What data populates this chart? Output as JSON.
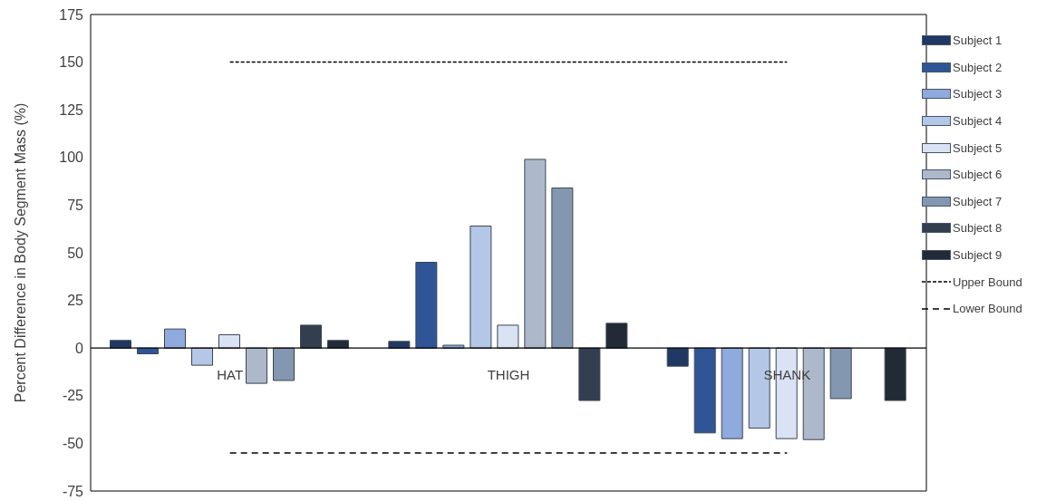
{
  "chart_data": {
    "type": "bar",
    "ylabel": "Percent Difference in Body Segment Mass (%)",
    "categories": [
      "HAT",
      "THIGH",
      "SHANK"
    ],
    "series": [
      {
        "name": "Subject 1",
        "color": "#203864",
        "values": [
          4,
          3.5,
          -9.5
        ]
      },
      {
        "name": "Subject 2",
        "color": "#2f5597",
        "values": [
          -3,
          45,
          -44.5
        ]
      },
      {
        "name": "Subject 3",
        "color": "#8faadc",
        "values": [
          10,
          1.5,
          -47.5
        ]
      },
      {
        "name": "Subject 4",
        "color": "#b4c7e7",
        "values": [
          -9,
          64,
          -42
        ]
      },
      {
        "name": "Subject 5",
        "color": "#dae3f3",
        "values": [
          7,
          12,
          -47.5
        ]
      },
      {
        "name": "Subject 6",
        "color": "#adb9ca",
        "values": [
          -18.5,
          99,
          -48
        ]
      },
      {
        "name": "Subject 7",
        "color": "#8497b0",
        "values": [
          -17,
          84,
          -26.5
        ]
      },
      {
        "name": "Subject 8",
        "color": "#333f50",
        "values": [
          12,
          -27.5,
          0
        ]
      },
      {
        "name": "Subject 9",
        "color": "#222a35",
        "values": [
          4,
          13,
          -27.5
        ]
      }
    ],
    "ylim": [
      -75,
      175
    ],
    "yticks": [
      -75,
      -50,
      -25,
      0,
      25,
      50,
      75,
      100,
      125,
      150,
      175
    ],
    "ref_lines": [
      {
        "axis": "y",
        "value": 150,
        "label": "Upper Bound",
        "color": "#000000",
        "line_style": "dotted"
      },
      {
        "axis": "y",
        "value": -55,
        "label": "Lower Bound",
        "color": "#000000",
        "line_style": "dashed"
      }
    ],
    "legend": "top right",
    "grid": false
  }
}
